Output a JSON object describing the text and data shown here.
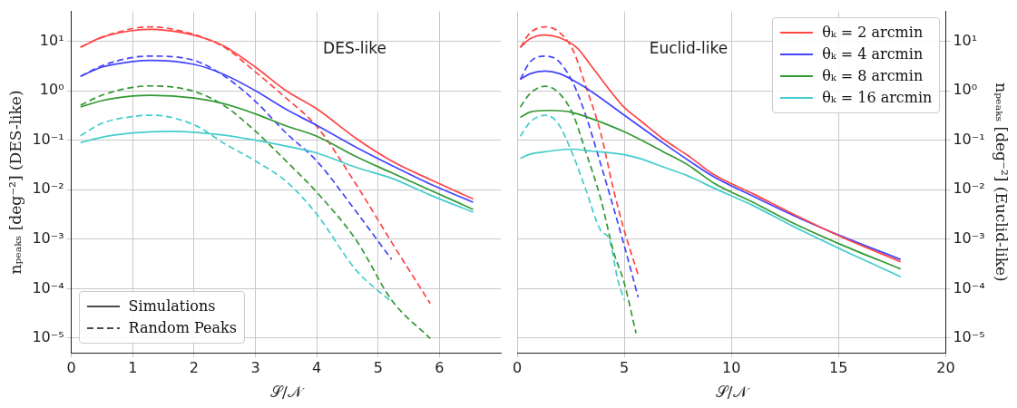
{
  "chart_data": [
    {
      "type": "line",
      "xlabel": "𝒮/𝒩",
      "ylabel": "nₚₑₐₖₛ [deg⁻²] (DES-like)",
      "log": "y",
      "grid": true,
      "legend": false,
      "annotations": [
        "DES-like",
        "Simulations",
        "Random Peaks"
      ],
      "xlim": [
        0,
        7
      ],
      "xticks": [
        0,
        1,
        2,
        3,
        4,
        5,
        6
      ],
      "ylim": [
        5e-06,
        40
      ],
      "yticks": [
        {
          "value": 1e-05,
          "label": "10⁻⁵"
        },
        {
          "value": 0.0001,
          "label": "10⁻⁴"
        },
        {
          "value": 0.001,
          "label": "10⁻³"
        },
        {
          "value": 0.01,
          "label": "10⁻²"
        },
        {
          "value": 0.1,
          "label": "10⁻¹"
        },
        {
          "value": 1,
          "label": "10⁰"
        },
        {
          "value": 10,
          "label": "10¹"
        }
      ],
      "series": [
        {
          "color": "#ff4444",
          "line_style": "solid",
          "x": [
            0.15,
            0.5,
            1.0,
            1.3,
            1.8,
            2.2,
            2.5,
            3.0,
            3.5,
            4.0,
            4.65,
            5.22,
            5.85,
            6.55
          ],
          "values": [
            7.6,
            12,
            16.4,
            17.4,
            15,
            11.2,
            7.8,
            3.0,
            1.0,
            0.43,
            0.107,
            0.038,
            0.016,
            0.0065
          ]
        },
        {
          "color": "#4444ff",
          "line_style": "solid",
          "x": [
            0.15,
            0.5,
            1.0,
            1.3,
            2.0,
            2.5,
            3.0,
            3.5,
            4.0,
            4.65,
            5.22,
            5.85,
            6.55
          ],
          "values": [
            1.95,
            3.0,
            3.9,
            4.1,
            3.4,
            2.1,
            1.0,
            0.42,
            0.2,
            0.071,
            0.031,
            0.013,
            0.0056
          ]
        },
        {
          "color": "#339933",
          "line_style": "solid",
          "x": [
            0.15,
            0.5,
            1.0,
            1.3,
            2.0,
            2.5,
            3.0,
            3.5,
            4.0,
            4.65,
            5.22,
            5.85,
            6.55
          ],
          "values": [
            0.47,
            0.63,
            0.78,
            0.81,
            0.71,
            0.54,
            0.34,
            0.195,
            0.12,
            0.046,
            0.022,
            0.0098,
            0.004
          ]
        },
        {
          "color": "#44cccc",
          "line_style": "solid",
          "x": [
            0.15,
            0.5,
            1.0,
            1.6,
            2.0,
            2.5,
            3.0,
            3.5,
            4.0,
            4.65,
            5.22,
            5.85,
            6.55
          ],
          "values": [
            0.089,
            0.115,
            0.14,
            0.151,
            0.145,
            0.126,
            0.1,
            0.076,
            0.055,
            0.028,
            0.017,
            0.0078,
            0.0035
          ]
        },
        {
          "color": "#ff4444",
          "line_style": "dashed",
          "x": [
            0.15,
            0.5,
            1.0,
            1.3,
            1.8,
            2.2,
            2.5,
            3.0,
            3.5,
            4.0,
            4.65,
            5.22,
            5.85
          ],
          "values": [
            7.6,
            12,
            18,
            19.5,
            16,
            11.2,
            7.5,
            2.4,
            0.71,
            0.19,
            0.0123,
            0.00087,
            5e-05
          ]
        },
        {
          "color": "#4444ff",
          "line_style": "dashed",
          "x": [
            0.15,
            0.5,
            1.0,
            1.3,
            2.0,
            2.5,
            3.0,
            3.5,
            4.0,
            4.65,
            5.22
          ],
          "values": [
            1.95,
            3.2,
            4.7,
            5.0,
            4.1,
            1.95,
            0.61,
            0.14,
            0.038,
            0.0035,
            0.00039
          ]
        },
        {
          "color": "#339933",
          "line_style": "dashed",
          "x": [
            0.15,
            0.5,
            1.0,
            1.3,
            2.0,
            2.5,
            3.0,
            3.5,
            4.0,
            4.65,
            5.22,
            5.85
          ],
          "values": [
            0.51,
            0.81,
            1.17,
            1.25,
            0.97,
            0.49,
            0.152,
            0.038,
            0.0089,
            0.00093,
            5.9e-05,
            9.8e-06
          ]
        },
        {
          "color": "#44cccc",
          "line_style": "dashed",
          "x": [
            0.15,
            0.5,
            1.0,
            1.3,
            2.0,
            2.5,
            3.0,
            3.5,
            4.0,
            4.65,
            5.22
          ],
          "values": [
            0.123,
            0.22,
            0.3,
            0.32,
            0.205,
            0.085,
            0.038,
            0.0148,
            0.0032,
            0.00023,
            5.4e-05
          ]
        }
      ]
    },
    {
      "type": "line",
      "xlabel": "𝒮/𝒩",
      "y2label": "nₚₑₐₖₛ [deg⁻²] (Euclid-like)",
      "log": "y2",
      "grid": true,
      "legend": "top right",
      "annotations": [
        "Euclid-like"
      ],
      "xlim": [
        0,
        20
      ],
      "xticks": [
        0,
        5,
        10,
        15,
        20
      ],
      "y2lim": [
        5e-06,
        40
      ],
      "y2ticks": [
        {
          "value": 1e-05,
          "label": "10⁻⁵"
        },
        {
          "value": 0.0001,
          "label": "10⁻⁴"
        },
        {
          "value": 0.001,
          "label": "10⁻³"
        },
        {
          "value": 0.01,
          "label": "10⁻²"
        },
        {
          "value": 0.1,
          "label": "10⁻¹"
        },
        {
          "value": 1,
          "label": "10⁰"
        },
        {
          "value": 10,
          "label": "10¹"
        }
      ],
      "series": [
        {
          "name": "θₖ = 2 arcmin",
          "axis": "y2",
          "color": "#ff4444",
          "line_style": "solid",
          "x": [
            0.15,
            0.6,
            1.3,
            2.0,
            2.8,
            3.5,
            5.0,
            5.7,
            6.8,
            8.0,
            9.2,
            11.0,
            12.9,
            15.2,
            17.9
          ],
          "values": [
            7.5,
            11.2,
            13.4,
            11.7,
            7.3,
            3.0,
            0.46,
            0.26,
            0.107,
            0.048,
            0.02,
            0.0083,
            0.0032,
            0.00108,
            0.00035
          ]
        },
        {
          "name": "θₖ = 4 arcmin",
          "axis": "y2",
          "color": "#4444ff",
          "line_style": "solid",
          "x": [
            0.15,
            0.6,
            1.3,
            2.0,
            2.8,
            3.5,
            5.0,
            6.8,
            8.0,
            9.2,
            11.0,
            12.9,
            15.2,
            17.9
          ],
          "values": [
            1.7,
            2.2,
            2.5,
            2.2,
            1.46,
            0.94,
            0.32,
            0.089,
            0.039,
            0.018,
            0.0074,
            0.003,
            0.00112,
            0.00039
          ]
        },
        {
          "name": "θₖ = 8 arcmin",
          "axis": "y2",
          "color": "#339933",
          "line_style": "solid",
          "x": [
            0.15,
            0.6,
            1.5,
            2.5,
            3.5,
            5.0,
            6.8,
            8.0,
            9.2,
            11.0,
            12.9,
            15.2,
            17.9
          ],
          "values": [
            0.29,
            0.37,
            0.4,
            0.37,
            0.27,
            0.148,
            0.059,
            0.031,
            0.0134,
            0.0056,
            0.0021,
            0.00075,
            0.00025
          ]
        },
        {
          "name": "θₖ = 16 arcmin",
          "axis": "y2",
          "color": "#44cccc",
          "line_style": "solid",
          "x": [
            0.15,
            0.6,
            1.5,
            2.5,
            3.5,
            5.0,
            5.7,
            6.8,
            8.0,
            9.2,
            11.0,
            12.9,
            15.2,
            17.9
          ],
          "values": [
            0.043,
            0.052,
            0.06,
            0.066,
            0.06,
            0.051,
            0.043,
            0.029,
            0.0187,
            0.0107,
            0.0048,
            0.0018,
            0.0006,
            0.000174
          ]
        },
        {
          "axis": "y2",
          "color": "#ff4444",
          "line_style": "dashed",
          "x": [
            0.15,
            0.6,
            1.3,
            1.9,
            2.6,
            3.2,
            3.9,
            4.5,
            5.0,
            5.65
          ],
          "values": [
            7.5,
            14.6,
            19.5,
            16,
            6.7,
            1.25,
            0.14,
            0.01,
            0.0015,
            0.00019
          ]
        },
        {
          "axis": "y2",
          "color": "#4444ff",
          "line_style": "dashed",
          "x": [
            0.15,
            0.6,
            1.3,
            1.9,
            2.6,
            3.2,
            3.9,
            4.5,
            5.0,
            5.65
          ],
          "values": [
            1.7,
            3.8,
            5.0,
            4.1,
            1.46,
            0.32,
            0.033,
            0.0043,
            0.00074,
            6.7e-05
          ]
        },
        {
          "axis": "y2",
          "color": "#339933",
          "line_style": "dashed",
          "x": [
            0.15,
            0.6,
            1.3,
            1.9,
            2.6,
            3.2,
            3.9,
            4.5,
            5.0,
            5.55
          ],
          "values": [
            0.47,
            0.87,
            1.23,
            0.94,
            0.34,
            0.059,
            0.0066,
            0.00056,
            0.00013,
            1.26e-05
          ]
        },
        {
          "axis": "y2",
          "color": "#44cccc",
          "line_style": "dashed",
          "x": [
            0.15,
            0.6,
            1.3,
            1.9,
            2.6,
            3.2,
            3.9,
            4.3,
            4.7,
            5.0
          ],
          "values": [
            0.12,
            0.23,
            0.32,
            0.22,
            0.051,
            0.0102,
            0.0015,
            0.001,
            0.00015,
            5.9e-05
          ]
        }
      ]
    }
  ]
}
